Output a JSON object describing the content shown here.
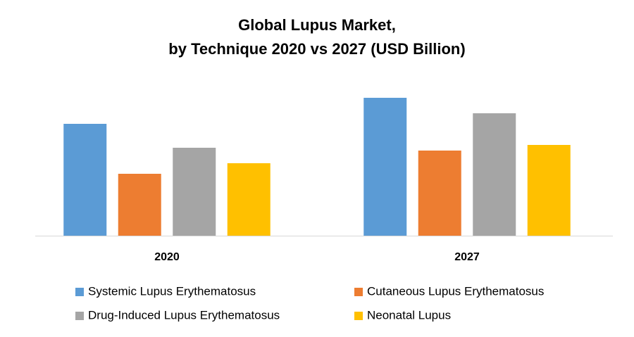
{
  "chart_data": {
    "type": "bar",
    "title": [
      "Global Lupus Market,",
      "by Technique 2020 vs 2027 (USD Billion)"
    ],
    "categories": [
      "2020",
      "2027"
    ],
    "series": [
      {
        "name": "Systemic Lupus Erythematosus",
        "color": "#5b9bd5",
        "values": [
          159,
          196
        ]
      },
      {
        "name": "Cutaneous Lupus Erythematosus",
        "color": "#ed7d31",
        "values": [
          88,
          121
        ]
      },
      {
        "name": "Drug-Induced Lupus Erythematosus",
        "color": "#a5a5a5",
        "values": [
          125,
          174
        ]
      },
      {
        "name": "Neonatal Lupus",
        "color": "#ffc000",
        "values": [
          103,
          129
        ]
      }
    ]
  }
}
